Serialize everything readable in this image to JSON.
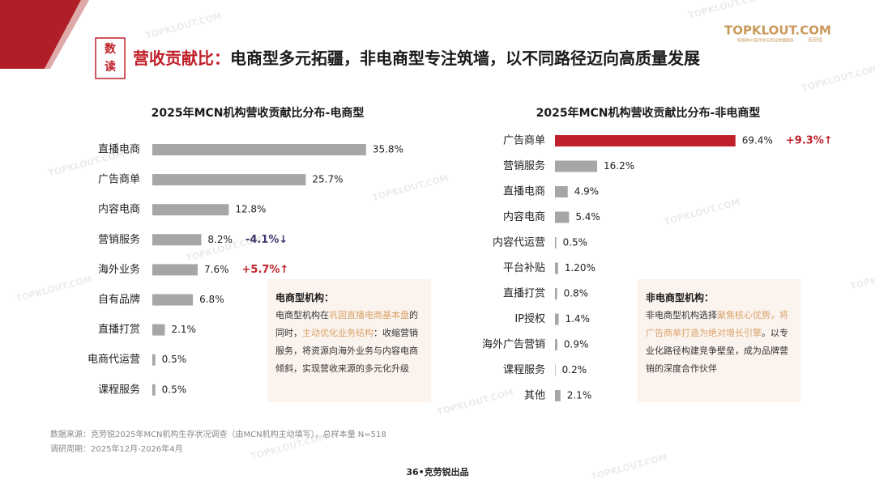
{
  "header": {
    "badge": [
      "数",
      "读"
    ],
    "title_parts": [
      {
        "text": "营收贡献比：",
        "color": "#c0202a"
      },
      {
        "text": "电商型多元拓疆，非电商型专注筑墙，以不同路径迈向高质量发展",
        "color": "#1a1a1a"
      }
    ],
    "logo": "TOPKLOUT.COM",
    "logo_sub": "新媒体价值评估与商业数据服务",
    "logo_brand": "克劳锐"
  },
  "watermark": "TOPKLOUT.COM",
  "chart_data": [
    {
      "type": "bar",
      "orientation": "horizontal",
      "title": "2025年MCN机构营收贡献比分布-电商型",
      "categories": [
        "直播电商",
        "广告商单",
        "内容电商",
        "营销服务",
        "海外业务",
        "自有品牌",
        "直播打赏",
        "电商代运营",
        "课程服务"
      ],
      "values": [
        35.8,
        25.7,
        12.8,
        8.2,
        7.6,
        6.8,
        2.1,
        0.5,
        0.5
      ],
      "value_labels": [
        "35.8%",
        "25.7%",
        "12.8%",
        "8.2%",
        "7.6%",
        "6.8%",
        "2.1%",
        "0.5%",
        "0.5%"
      ],
      "colors": [
        "#a6a6a6",
        "#a6a6a6",
        "#a6a6a6",
        "#a6a6a6",
        "#a6a6a6",
        "#a6a6a6",
        "#a6a6a6",
        "#a6a6a6",
        "#a6a6a6"
      ],
      "change_labels": [
        null,
        null,
        null,
        "-4.1%↓",
        "+5.7%↑",
        null,
        null,
        null,
        null
      ],
      "change_colors": [
        null,
        null,
        null,
        "#3b3a6e",
        "#c0202a",
        null,
        null,
        null,
        null
      ]
    },
    {
      "type": "bar",
      "orientation": "horizontal",
      "title": "2025年MCN机构营收贡献比分布-非电商型",
      "categories": [
        "广告商单",
        "营销服务",
        "直播电商",
        "内容电商",
        "内容代运营",
        "平台补贴",
        "直播打赏",
        "IP授权",
        "海外广告营销",
        "课程服务",
        "其他"
      ],
      "values": [
        69.4,
        16.2,
        4.9,
        5.4,
        0.5,
        1.2,
        0.8,
        1.4,
        0.9,
        0.2,
        2.1
      ],
      "value_labels": [
        "69.4%",
        "16.2%",
        "4.9%",
        "5.4%",
        "0.5%",
        "1.20%",
        "0.8%",
        "1.4%",
        "0.9%",
        "0.2%",
        "2.1%"
      ],
      "colors": [
        "#c0202a",
        "#a6a6a6",
        "#a6a6a6",
        "#a6a6a6",
        "#a6a6a6",
        "#a6a6a6",
        "#a6a6a6",
        "#a6a6a6",
        "#a6a6a6",
        "#a6a6a6",
        "#a6a6a6"
      ],
      "change_labels": [
        "+9.3%↑",
        null,
        null,
        null,
        null,
        null,
        null,
        null,
        null,
        null,
        null
      ],
      "change_colors": [
        "#c0202a",
        null,
        null,
        null,
        null,
        null,
        null,
        null,
        null,
        null,
        null
      ]
    }
  ],
  "notes": [
    {
      "title": "电商型机构：",
      "segments": [
        {
          "text": "电商型机构在"
        },
        {
          "text": "巩固直播电商基本盘",
          "color": "#d9a36a"
        },
        {
          "text": "的同时，"
        },
        {
          "text": "主动优化业务结构",
          "color": "#d9a36a"
        },
        {
          "text": "：收缩营销服务，将资源向海外业务与内容电商倾斜，实现营收来源的多元化升级"
        }
      ]
    },
    {
      "title": "非电商型机构：",
      "segments": [
        {
          "text": "非电商型机构选择"
        },
        {
          "text": "聚焦核心优势，将广告商单打造为绝对增长引擎",
          "color": "#d9a36a"
        },
        {
          "text": "。以专业化路径构建竞争壁垒，成为品牌营销的深度合作伙伴"
        }
      ]
    }
  ],
  "footer": {
    "source": "数据来源：克劳锐2025年MCN机构生存状况调查（由MCN机构主动填写），总样本量 N=518",
    "period": "调研周期：2025年12月-2026年4月",
    "page": "36•克劳锐出品"
  }
}
